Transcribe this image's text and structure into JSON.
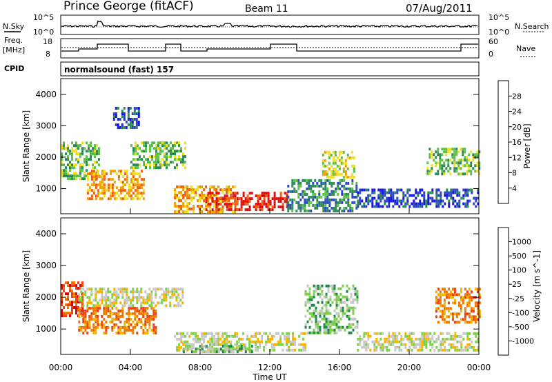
{
  "header": {
    "station": "Prince George (fitACF)",
    "beam": "Beam 11",
    "date": "07/Aug/2011"
  },
  "panels": {
    "nsky_label": "N.Sky",
    "nsearch_label": "N.Search",
    "freq_label_1": "Freq.",
    "freq_label_2": "[MHz]",
    "nave_label": "Nave",
    "cpid_label": "CPID",
    "cpid_value": "normalsound (fast) 157",
    "noise_ticks_left": [
      "10^5",
      "10^0"
    ],
    "noise_ticks_right": [
      "10^5",
      "10^0"
    ],
    "freq_ticks_left": [
      "18",
      "8"
    ],
    "nave_ticks_right": [
      "60",
      "0"
    ]
  },
  "chart_data": [
    {
      "type": "heatmap",
      "name": "power",
      "ylabel": "Slant Range [km]",
      "xlabel": "",
      "y_ticks": [
        "1000",
        "2000",
        "3000",
        "4000"
      ],
      "ylim": [
        200,
        4500
      ],
      "colorbar_label": "Power [dB]",
      "colorbar_ticks": [
        "4",
        "8",
        "12",
        "16",
        "20",
        "24",
        "28"
      ],
      "colorbar_colors": [
        "#1818e0",
        "#2f49c0",
        "#2e8b57",
        "#5cc04a",
        "#f0e020",
        "#f2a000",
        "#f06010",
        "#e01010"
      ],
      "echo_regions": [
        {
          "t0": 0.0,
          "t1": 2.2,
          "r0": 1300,
          "r1": 2500,
          "level": 3
        },
        {
          "t0": 1.5,
          "t1": 4.8,
          "r0": 700,
          "r1": 1600,
          "level": 5
        },
        {
          "t0": 3.0,
          "t1": 4.5,
          "r0": 2900,
          "r1": 3600,
          "level": 1
        },
        {
          "t0": 4.0,
          "t1": 7.2,
          "r0": 1700,
          "r1": 2500,
          "level": 3
        },
        {
          "t0": 6.5,
          "t1": 10.0,
          "r0": 300,
          "r1": 1100,
          "level": 5
        },
        {
          "t0": 8.3,
          "t1": 13.0,
          "r0": 300,
          "r1": 900,
          "level": 7
        },
        {
          "t0": 13.0,
          "t1": 17.0,
          "r0": 300,
          "r1": 1300,
          "level": 2
        },
        {
          "t0": 15.0,
          "t1": 16.8,
          "r0": 1400,
          "r1": 2200,
          "level": 4
        },
        {
          "t0": 17.0,
          "t1": 24.0,
          "r0": 400,
          "r1": 1000,
          "level": 1
        },
        {
          "t0": 21.0,
          "t1": 24.0,
          "r0": 1500,
          "r1": 2300,
          "level": 3
        }
      ]
    },
    {
      "type": "heatmap",
      "name": "velocity",
      "ylabel": "Slant Range [km]",
      "xlabel": "Time UT",
      "y_ticks": [
        "1000",
        "2000",
        "3000",
        "4000"
      ],
      "x_ticks": [
        "00:00",
        "04:00",
        "08:00",
        "12:00",
        "16:00",
        "20:00",
        "00:00"
      ],
      "ylim": [
        200,
        4500
      ],
      "colorbar_label": "Velocity [m s^-1]",
      "colorbar_ticks": [
        "1000",
        "500",
        "100",
        "25",
        "-25",
        "-100",
        "-500",
        "-1000"
      ],
      "colorbar_colors": [
        "#1a2aa8",
        "#2f6fb0",
        "#1c8c4a",
        "#7ed04a",
        "#c8c8c8",
        "#f6b400",
        "#f07800",
        "#f04010",
        "#e00000"
      ],
      "echo_regions": [
        {
          "t0": 0.0,
          "t1": 1.2,
          "r0": 1400,
          "r1": 2500,
          "level": 7
        },
        {
          "t0": 1.0,
          "t1": 5.5,
          "r0": 900,
          "r1": 1700,
          "level": 6
        },
        {
          "t0": 1.0,
          "t1": 7.0,
          "r0": 1700,
          "r1": 2300,
          "level": 4
        },
        {
          "t0": 6.5,
          "t1": 14.0,
          "r0": 300,
          "r1": 900,
          "level": 4
        },
        {
          "t0": 7.0,
          "t1": 11.0,
          "r0": 250,
          "r1": 500,
          "level": 3
        },
        {
          "t0": 14.0,
          "t1": 17.0,
          "r0": 900,
          "r1": 2400,
          "level": 3
        },
        {
          "t0": 17.0,
          "t1": 24.0,
          "r0": 300,
          "r1": 900,
          "level": 4
        },
        {
          "t0": 21.5,
          "t1": 24.0,
          "r0": 1200,
          "r1": 2300,
          "level": 6
        }
      ]
    }
  ]
}
